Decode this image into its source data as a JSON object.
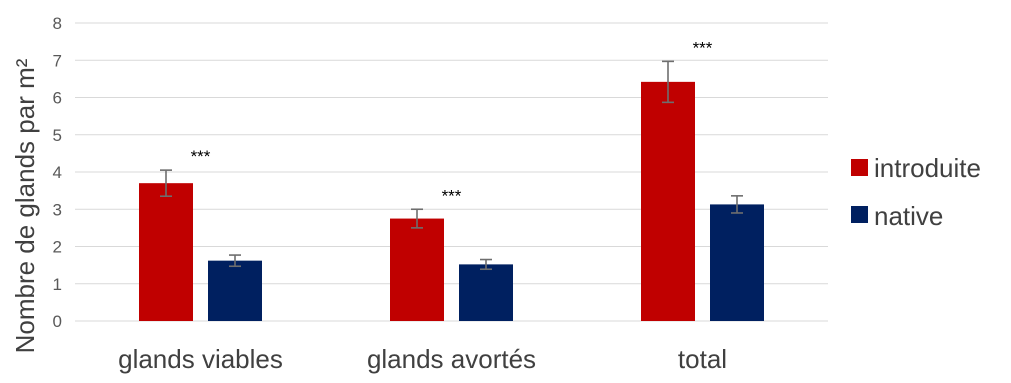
{
  "chart_data": {
    "type": "bar",
    "categories": [
      "glands viables",
      "glands avortés",
      "total"
    ],
    "series": [
      {
        "name": "introduite",
        "color": "#c00000",
        "values": [
          3.7,
          2.75,
          6.42
        ],
        "errors": [
          0.35,
          0.25,
          0.55
        ]
      },
      {
        "name": "native",
        "color": "#002060",
        "values": [
          1.62,
          1.52,
          3.13
        ],
        "errors": [
          0.15,
          0.13,
          0.23
        ]
      }
    ],
    "significance": [
      "***",
      "***",
      "***"
    ],
    "ylabel": "Nombre de glands par m²",
    "xlabel": "",
    "ylim": [
      0,
      8
    ],
    "yticks": [
      0,
      1,
      2,
      3,
      4,
      5,
      6,
      7,
      8
    ],
    "grid": true,
    "legend_position": "right"
  }
}
